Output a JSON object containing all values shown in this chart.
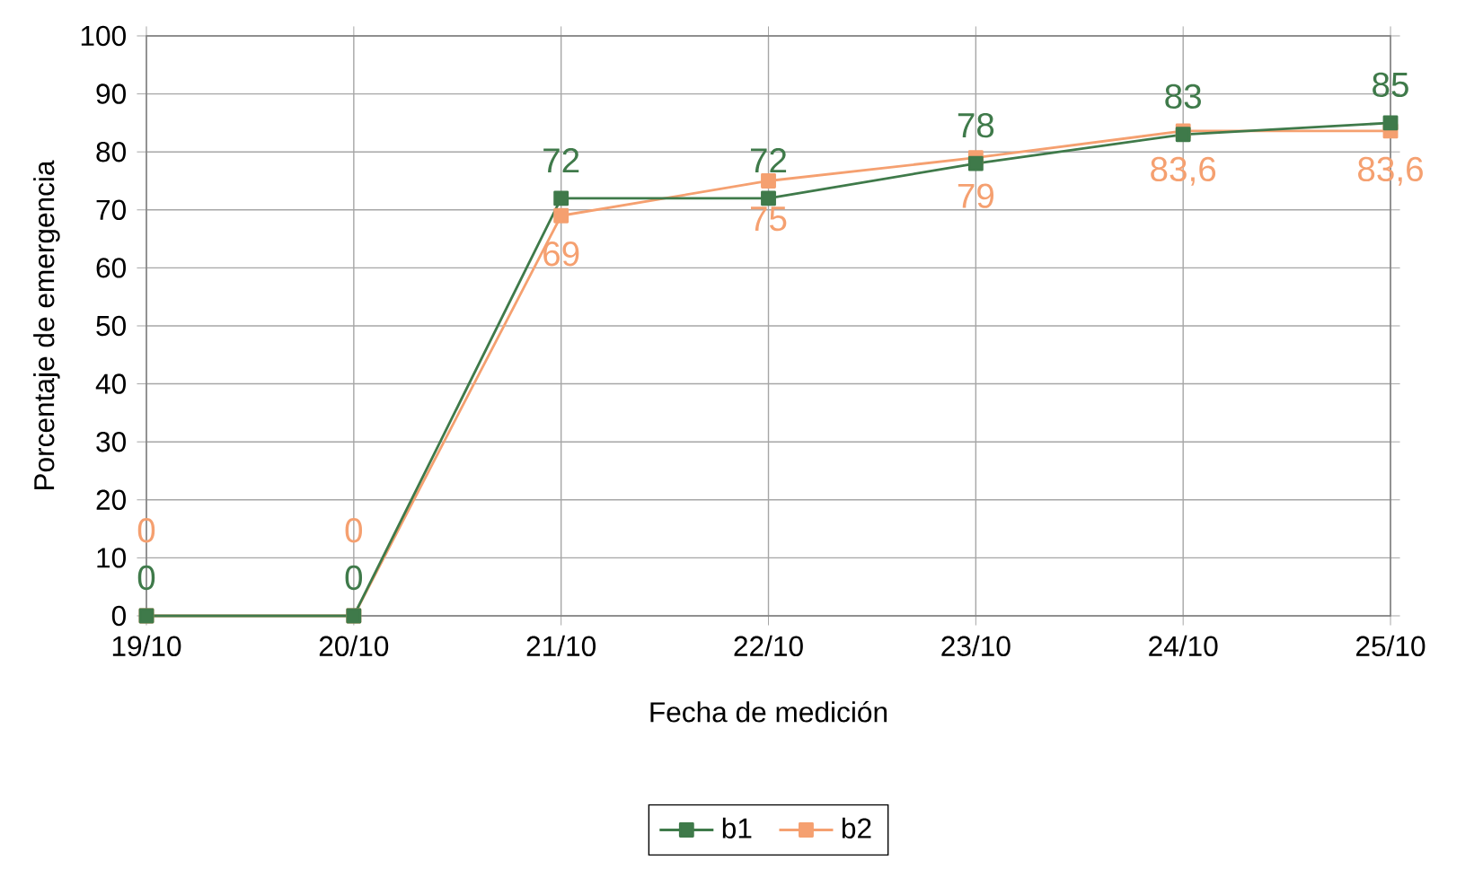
{
  "chart_data": {
    "type": "line",
    "xlabel": "Fecha de medición",
    "ylabel": "Porcentaje de emergencia",
    "categories": [
      "19/10",
      "20/10",
      "21/10",
      "22/10",
      "23/10",
      "24/10",
      "25/10"
    ],
    "ylim": [
      0,
      100
    ],
    "yticks": [
      0,
      10,
      20,
      30,
      40,
      50,
      60,
      70,
      80,
      90,
      100
    ],
    "grid": true,
    "legend": "bottom",
    "marker": "square",
    "line_style": "solid",
    "series": [
      {
        "name": "b1",
        "color": "#3f7a4a",
        "values": [
          0,
          0,
          72,
          72,
          78,
          83,
          85
        ],
        "value_labels": [
          "0",
          "0",
          "72",
          "72",
          "78",
          "83",
          "85"
        ]
      },
      {
        "name": "b2",
        "color": "#f5a070",
        "values": [
          0,
          0,
          69,
          75,
          79,
          83.6,
          83.6
        ],
        "value_labels": [
          "0",
          "0",
          "69",
          "75",
          "79",
          "83,6",
          "83,6"
        ]
      }
    ]
  }
}
